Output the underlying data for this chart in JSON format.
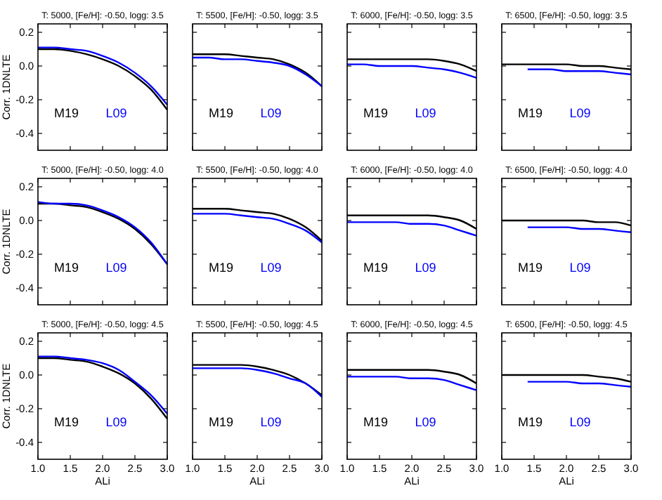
{
  "chart_data": [
    {
      "type": "line",
      "title": "T:  5000, [Fe/H]: -0.50, logg: 3.5",
      "ylabel": "Corr. 1DNLTE",
      "xlim": [
        1.0,
        3.0
      ],
      "ylim": [
        -0.5,
        0.25
      ],
      "yticks": [
        {
          "value": -0.4,
          "label": "-0.4"
        },
        {
          "value": -0.2,
          "label": "-0.2"
        },
        {
          "value": 0.0,
          "label": "0.0"
        },
        {
          "value": 0.2,
          "label": "0.2"
        }
      ],
      "tick_labels": "y",
      "legend": "bottom left",
      "series": [
        {
          "name": "M19",
          "color": "#000000",
          "x": [
            1.0,
            1.25,
            1.5,
            1.75,
            2.0,
            2.25,
            2.5,
            2.75,
            3.0
          ],
          "values": [
            0.1,
            0.1,
            0.09,
            0.07,
            0.04,
            0.0,
            -0.06,
            -0.14,
            -0.26
          ]
        },
        {
          "name": "L09",
          "color": "#0000ff",
          "x": [
            1.0,
            1.25,
            1.5,
            1.75,
            2.0,
            2.25,
            2.5,
            2.75,
            3.0
          ],
          "values": [
            0.11,
            0.11,
            0.1,
            0.09,
            0.06,
            0.02,
            -0.04,
            -0.12,
            -0.23
          ]
        }
      ]
    },
    {
      "type": "line",
      "title": "T:  5500, [Fe/H]: -0.50, logg: 3.5",
      "xlim": [
        1.0,
        3.0
      ],
      "ylim": [
        -0.5,
        0.25
      ],
      "tick_labels": false,
      "legend": "bottom left",
      "series": [
        {
          "name": "M19",
          "color": "#000000",
          "x": [
            1.0,
            1.25,
            1.5,
            1.75,
            2.0,
            2.25,
            2.5,
            2.75,
            3.0
          ],
          "values": [
            0.07,
            0.07,
            0.07,
            0.06,
            0.05,
            0.04,
            0.01,
            -0.04,
            -0.12
          ]
        },
        {
          "name": "L09",
          "color": "#0000ff",
          "x": [
            1.0,
            1.25,
            1.5,
            1.75,
            2.0,
            2.25,
            2.5,
            2.75,
            3.0
          ],
          "values": [
            0.05,
            0.05,
            0.04,
            0.04,
            0.03,
            0.02,
            0.0,
            -0.05,
            -0.12
          ]
        }
      ]
    },
    {
      "type": "line",
      "title": "T:  6000, [Fe/H]: -0.50, logg: 3.5",
      "xlim": [
        1.0,
        3.0
      ],
      "ylim": [
        -0.5,
        0.25
      ],
      "tick_labels": false,
      "legend": "bottom left",
      "series": [
        {
          "name": "M19",
          "color": "#000000",
          "x": [
            1.0,
            1.25,
            1.5,
            1.75,
            2.0,
            2.25,
            2.5,
            2.75,
            3.0
          ],
          "values": [
            0.04,
            0.04,
            0.04,
            0.04,
            0.04,
            0.04,
            0.03,
            0.01,
            -0.03
          ]
        },
        {
          "name": "L09",
          "color": "#0000ff",
          "x": [
            1.0,
            1.25,
            1.5,
            1.75,
            2.0,
            2.25,
            2.5,
            2.75,
            3.0
          ],
          "values": [
            0.01,
            0.01,
            0.0,
            0.0,
            0.0,
            -0.01,
            -0.02,
            -0.04,
            -0.07
          ]
        }
      ]
    },
    {
      "type": "line",
      "title": "T:  6500, [Fe/H]: -0.50, logg: 3.5",
      "xlim": [
        1.0,
        3.0
      ],
      "ylim": [
        -0.5,
        0.25
      ],
      "tick_labels": false,
      "legend": "bottom left",
      "series": [
        {
          "name": "M19",
          "color": "#000000",
          "x": [
            1.0,
            1.25,
            1.5,
            1.75,
            2.0,
            2.25,
            2.5,
            2.75,
            3.0
          ],
          "values": [
            0.01,
            0.01,
            0.01,
            0.01,
            0.01,
            0.0,
            0.0,
            -0.01,
            -0.02
          ]
        },
        {
          "name": "L09",
          "color": "#0000ff",
          "x": [
            1.4,
            1.75,
            2.0,
            2.25,
            2.5,
            2.75,
            3.0
          ],
          "values": [
            -0.02,
            -0.02,
            -0.03,
            -0.03,
            -0.03,
            -0.04,
            -0.05
          ]
        }
      ]
    },
    {
      "type": "line",
      "title": "T:  5000, [Fe/H]: -0.50, logg: 4.0",
      "ylabel": "Corr. 1DNLTE",
      "xlim": [
        1.0,
        3.0
      ],
      "ylim": [
        -0.5,
        0.25
      ],
      "yticks": [
        {
          "value": -0.4,
          "label": "-0.4"
        },
        {
          "value": -0.2,
          "label": "-0.2"
        },
        {
          "value": 0.0,
          "label": "0.0"
        },
        {
          "value": 0.2,
          "label": "0.2"
        }
      ],
      "tick_labels": "y",
      "legend": "bottom left",
      "series": [
        {
          "name": "M19",
          "color": "#000000",
          "x": [
            1.0,
            1.25,
            1.5,
            1.75,
            2.0,
            2.25,
            2.5,
            2.75,
            3.0
          ],
          "values": [
            0.1,
            0.1,
            0.09,
            0.08,
            0.05,
            0.01,
            -0.05,
            -0.14,
            -0.26
          ]
        },
        {
          "name": "L09",
          "color": "#0000ff",
          "x": [
            1.0,
            1.25,
            1.5,
            1.75,
            2.0,
            2.25,
            2.5,
            2.75,
            3.0
          ],
          "values": [
            0.11,
            0.1,
            0.1,
            0.09,
            0.06,
            0.02,
            -0.04,
            -0.13,
            -0.26
          ]
        }
      ]
    },
    {
      "type": "line",
      "title": "T:  5500, [Fe/H]: -0.50, logg: 4.0",
      "xlim": [
        1.0,
        3.0
      ],
      "ylim": [
        -0.5,
        0.25
      ],
      "tick_labels": false,
      "legend": "bottom left",
      "series": [
        {
          "name": "M19",
          "color": "#000000",
          "x": [
            1.0,
            1.25,
            1.5,
            1.75,
            2.0,
            2.25,
            2.5,
            2.75,
            3.0
          ],
          "values": [
            0.07,
            0.07,
            0.07,
            0.06,
            0.05,
            0.04,
            0.01,
            -0.04,
            -0.12
          ]
        },
        {
          "name": "L09",
          "color": "#0000ff",
          "x": [
            1.0,
            1.25,
            1.5,
            1.75,
            2.0,
            2.25,
            2.5,
            2.75,
            3.0
          ],
          "values": [
            0.04,
            0.04,
            0.04,
            0.03,
            0.02,
            0.01,
            -0.02,
            -0.06,
            -0.13
          ]
        }
      ]
    },
    {
      "type": "line",
      "title": "T:  6000, [Fe/H]: -0.50, logg: 4.0",
      "xlim": [
        1.0,
        3.0
      ],
      "ylim": [
        -0.5,
        0.25
      ],
      "tick_labels": false,
      "legend": "bottom left",
      "series": [
        {
          "name": "M19",
          "color": "#000000",
          "x": [
            1.0,
            1.25,
            1.5,
            1.75,
            2.0,
            2.25,
            2.5,
            2.75,
            3.0
          ],
          "values": [
            0.03,
            0.03,
            0.03,
            0.03,
            0.03,
            0.03,
            0.02,
            0.0,
            -0.05
          ]
        },
        {
          "name": "L09",
          "color": "#0000ff",
          "x": [
            1.0,
            1.25,
            1.5,
            1.75,
            2.0,
            2.25,
            2.5,
            2.75,
            3.0
          ],
          "values": [
            -0.01,
            -0.01,
            -0.01,
            -0.01,
            -0.02,
            -0.02,
            -0.03,
            -0.06,
            -0.09
          ]
        }
      ]
    },
    {
      "type": "line",
      "title": "T:  6500, [Fe/H]: -0.50, logg: 4.0",
      "xlim": [
        1.0,
        3.0
      ],
      "ylim": [
        -0.5,
        0.25
      ],
      "tick_labels": false,
      "legend": "bottom left",
      "series": [
        {
          "name": "M19",
          "color": "#000000",
          "x": [
            1.0,
            1.25,
            1.5,
            1.75,
            2.0,
            2.25,
            2.5,
            2.75,
            3.0
          ],
          "values": [
            0.0,
            0.0,
            0.0,
            0.0,
            0.0,
            0.0,
            -0.01,
            -0.01,
            -0.03
          ]
        },
        {
          "name": "L09",
          "color": "#0000ff",
          "x": [
            1.4,
            1.75,
            2.0,
            2.25,
            2.5,
            2.75,
            3.0
          ],
          "values": [
            -0.04,
            -0.04,
            -0.04,
            -0.05,
            -0.05,
            -0.06,
            -0.07
          ]
        }
      ]
    },
    {
      "type": "line",
      "title": "T:  5000, [Fe/H]: -0.50, logg: 4.5",
      "xlabel": "ALi",
      "ylabel": "Corr. 1DNLTE",
      "xlim": [
        1.0,
        3.0
      ],
      "ylim": [
        -0.5,
        0.25
      ],
      "xticks": [
        {
          "value": 1.0,
          "label": "1.0"
        },
        {
          "value": 1.5,
          "label": "1.5"
        },
        {
          "value": 2.0,
          "label": "2.0"
        },
        {
          "value": 2.5,
          "label": "2.5"
        },
        {
          "value": 3.0,
          "label": "3.0"
        }
      ],
      "yticks": [
        {
          "value": -0.4,
          "label": "-0.4"
        },
        {
          "value": -0.2,
          "label": "-0.2"
        },
        {
          "value": 0.0,
          "label": "0.0"
        },
        {
          "value": 0.2,
          "label": "0.2"
        }
      ],
      "legend": "bottom left",
      "series": [
        {
          "name": "M19",
          "color": "#000000",
          "x": [
            1.0,
            1.25,
            1.5,
            1.75,
            2.0,
            2.25,
            2.5,
            2.75,
            3.0
          ],
          "values": [
            0.1,
            0.1,
            0.09,
            0.08,
            0.05,
            0.01,
            -0.05,
            -0.14,
            -0.26
          ]
        },
        {
          "name": "L09",
          "color": "#0000ff",
          "x": [
            1.0,
            1.25,
            1.5,
            1.75,
            2.0,
            2.25,
            2.5,
            2.75,
            3.0
          ],
          "values": [
            0.11,
            0.11,
            0.1,
            0.09,
            0.07,
            0.03,
            -0.04,
            -0.12,
            -0.23
          ]
        }
      ]
    },
    {
      "type": "line",
      "title": "T:  5500, [Fe/H]: -0.50, logg: 4.5",
      "xlabel": "ALi",
      "xlim": [
        1.0,
        3.0
      ],
      "ylim": [
        -0.5,
        0.25
      ],
      "xticks": [
        {
          "value": 1.0,
          "label": "1.0"
        },
        {
          "value": 1.5,
          "label": "1.5"
        },
        {
          "value": 2.0,
          "label": "2.0"
        },
        {
          "value": 2.5,
          "label": "2.5"
        },
        {
          "value": 3.0,
          "label": "3.0"
        }
      ],
      "tick_labels": "x",
      "legend": "bottom left",
      "series": [
        {
          "name": "M19",
          "color": "#000000",
          "x": [
            1.0,
            1.25,
            1.5,
            1.75,
            2.0,
            2.25,
            2.5,
            2.75,
            3.0
          ],
          "values": [
            0.06,
            0.06,
            0.06,
            0.06,
            0.05,
            0.03,
            0.0,
            -0.05,
            -0.12
          ]
        },
        {
          "name": "L09",
          "color": "#0000ff",
          "x": [
            1.0,
            1.25,
            1.5,
            1.75,
            2.0,
            2.25,
            2.5,
            2.75,
            3.0
          ],
          "values": [
            0.04,
            0.04,
            0.04,
            0.04,
            0.03,
            0.01,
            -0.02,
            -0.05,
            -0.13
          ]
        }
      ]
    },
    {
      "type": "line",
      "title": "T:  6000, [Fe/H]: -0.50, logg: 4.5",
      "xlabel": "ALi",
      "xlim": [
        1.0,
        3.0
      ],
      "ylim": [
        -0.5,
        0.25
      ],
      "xticks": [
        {
          "value": 1.0,
          "label": "1.0"
        },
        {
          "value": 1.5,
          "label": "1.5"
        },
        {
          "value": 2.0,
          "label": "2.0"
        },
        {
          "value": 2.5,
          "label": "2.5"
        },
        {
          "value": 3.0,
          "label": "3.0"
        }
      ],
      "tick_labels": "x",
      "legend": "bottom left",
      "series": [
        {
          "name": "M19",
          "color": "#000000",
          "x": [
            1.0,
            1.25,
            1.5,
            1.75,
            2.0,
            2.25,
            2.5,
            2.75,
            3.0
          ],
          "values": [
            0.03,
            0.03,
            0.03,
            0.03,
            0.03,
            0.03,
            0.02,
            0.0,
            -0.05
          ]
        },
        {
          "name": "L09",
          "color": "#0000ff",
          "x": [
            1.0,
            1.25,
            1.5,
            1.75,
            2.0,
            2.25,
            2.5,
            2.75,
            3.0
          ],
          "values": [
            -0.01,
            -0.01,
            -0.01,
            -0.01,
            -0.02,
            -0.02,
            -0.03,
            -0.06,
            -0.09
          ]
        }
      ]
    },
    {
      "type": "line",
      "title": "T:  6500, [Fe/H]: -0.50, logg: 4.5",
      "xlabel": "ALi",
      "xlim": [
        1.0,
        3.0
      ],
      "ylim": [
        -0.5,
        0.25
      ],
      "xticks": [
        {
          "value": 1.0,
          "label": "1.0"
        },
        {
          "value": 1.5,
          "label": "1.5"
        },
        {
          "value": 2.0,
          "label": "2.0"
        },
        {
          "value": 2.5,
          "label": "2.5"
        },
        {
          "value": 3.0,
          "label": "3.0"
        }
      ],
      "tick_labels": "x",
      "legend": "bottom left",
      "series": [
        {
          "name": "M19",
          "color": "#000000",
          "x": [
            1.0,
            1.25,
            1.5,
            1.75,
            2.0,
            2.25,
            2.5,
            2.75,
            3.0
          ],
          "values": [
            0.0,
            0.0,
            0.0,
            0.0,
            0.0,
            0.0,
            -0.01,
            -0.02,
            -0.04
          ]
        },
        {
          "name": "L09",
          "color": "#0000ff",
          "x": [
            1.4,
            1.75,
            2.0,
            2.25,
            2.5,
            2.75,
            3.0
          ],
          "values": [
            -0.04,
            -0.04,
            -0.04,
            -0.05,
            -0.05,
            -0.06,
            -0.07
          ]
        }
      ]
    }
  ]
}
